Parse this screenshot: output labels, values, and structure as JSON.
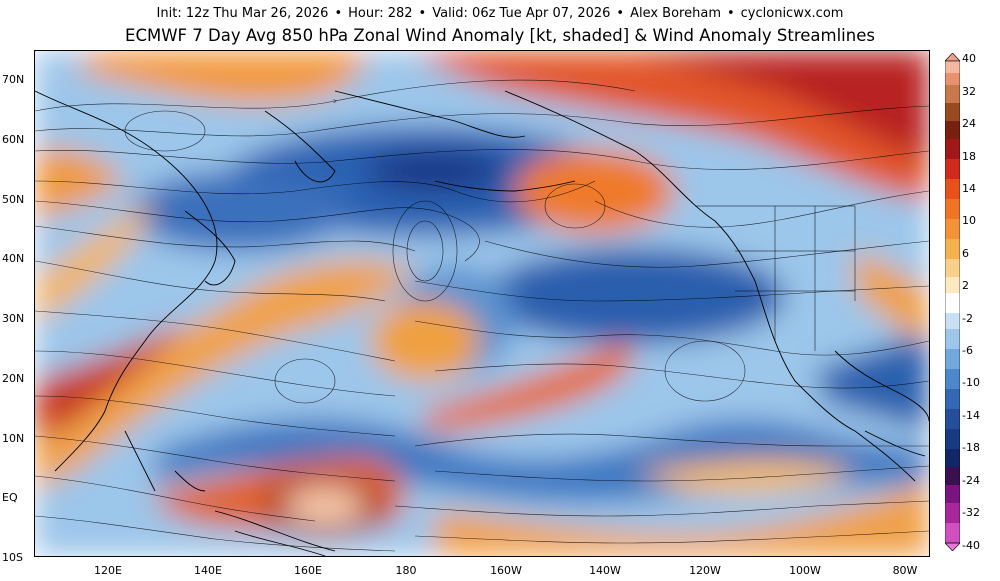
{
  "header": {
    "init": "Init: 12z Thu Mar 26, 2026",
    "hour": "Hour: 282",
    "valid": "Valid: 06z Tue Apr 07, 2026",
    "author": "Alex Boreham",
    "site": "cyclonicwx.com",
    "separator": "•",
    "title": "ECMWF 7 Day Avg 850 hPa Zonal Wind Anomaly [kt, shaded] & Wind Anomaly Streamlines"
  },
  "map": {
    "lat_labels": [
      "70N",
      "60N",
      "50N",
      "40N",
      "30N",
      "20N",
      "10N",
      "EQ",
      "10S"
    ],
    "lon_labels": [
      "120E",
      "140E",
      "160E",
      "180",
      "160W",
      "140W",
      "120W",
      "100W",
      "80W"
    ],
    "lat_range": [
      -10,
      75
    ],
    "lon_range": [
      108,
      -75
    ],
    "colorbar_labels": [
      "40",
      "32",
      "24",
      "18",
      "14",
      "10",
      "6",
      "2",
      "-2",
      "-6",
      "-10",
      "-14",
      "-18",
      "-24",
      "-32",
      "-40"
    ],
    "colors": {
      "strong_positive": "#b01818",
      "positive": "#e8541c",
      "weak_positive": "#f6b24a",
      "near_zero": "#ffffff",
      "weak_negative": "#8fc0e8",
      "negative": "#3c7cc4",
      "strong_negative": "#163e8c",
      "extreme_negative": "#4a1060",
      "extreme_positive": "#f8c8b0",
      "coast": "#000000"
    }
  }
}
